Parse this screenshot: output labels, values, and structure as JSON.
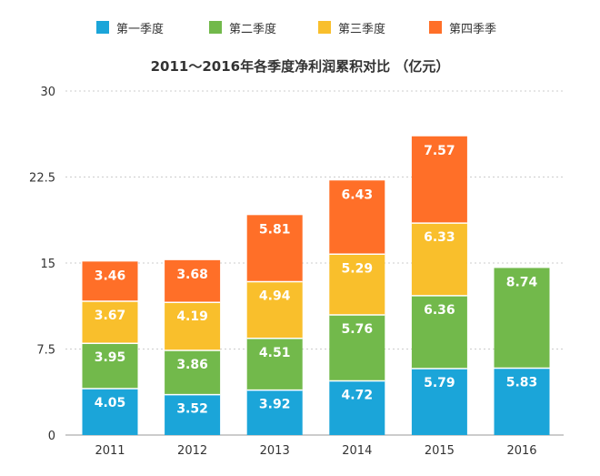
{
  "legend": [
    {
      "label": "第一季度",
      "color": "#1ba5d9"
    },
    {
      "label": "第二季度",
      "color": "#72b94b"
    },
    {
      "label": "第三季度",
      "color": "#f9bf2c"
    },
    {
      "label": "第四季季",
      "color": "#ff6f28"
    }
  ],
  "chart_data": {
    "type": "bar",
    "stacked": true,
    "title": "2011～2016年各季度净利润累积对比 （亿元）",
    "xlabel": "",
    "ylabel": "",
    "categories": [
      "2011",
      "2012",
      "2013",
      "2014",
      "2015",
      "2016"
    ],
    "series": [
      {
        "name": "第一季度",
        "color": "#1ba5d9",
        "values": [
          4.05,
          3.52,
          3.92,
          4.72,
          5.79,
          5.83
        ]
      },
      {
        "name": "第二季度",
        "color": "#72b94b",
        "values": [
          3.95,
          3.86,
          4.51,
          5.76,
          6.36,
          8.74
        ]
      },
      {
        "name": "第三季度",
        "color": "#f9bf2c",
        "values": [
          3.67,
          4.19,
          4.94,
          5.29,
          6.33,
          null
        ]
      },
      {
        "name": "第四季季",
        "color": "#ff6f28",
        "values": [
          3.46,
          3.68,
          5.81,
          6.43,
          7.57,
          null
        ]
      }
    ],
    "data_labels": [
      [
        "4.05",
        "3.52",
        "3.92",
        "4.72",
        "5.79",
        "5.83"
      ],
      [
        "3.95",
        "3.86",
        "4.51",
        "5.76",
        "6.36",
        "8.74"
      ],
      [
        "3.67",
        "4.19",
        "4.94",
        "5.29",
        "6.33",
        ""
      ],
      [
        "3.46",
        "3.68",
        "5.81",
        "6.43",
        "7.57",
        ""
      ]
    ],
    "yticks": [
      "0",
      "7.5",
      "15",
      "22.5",
      "30"
    ],
    "ylim": [
      0,
      30
    ],
    "grid": true,
    "legend_position": "top"
  }
}
